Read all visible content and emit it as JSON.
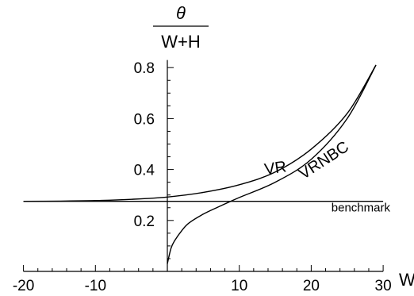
{
  "chart_data": {
    "type": "line",
    "title": "",
    "xlabel": "W",
    "ylabel": {
      "numerator": "θ",
      "denominator": "W+H"
    },
    "xlim": [
      -20,
      30
    ],
    "ylim": [
      0,
      0.83
    ],
    "x_ticks": [
      -20,
      -10,
      10,
      20,
      30
    ],
    "x_tick_labels": [
      "-20",
      "-10",
      "10",
      "20",
      "30"
    ],
    "y_ticks": [
      0.2,
      0.4,
      0.6,
      0.8
    ],
    "y_tick_labels": [
      "0.2",
      "0.4",
      "0.6",
      "0.8"
    ],
    "grid": false,
    "series": [
      {
        "name": "VR",
        "x": [
          -20,
          -15,
          -10,
          -5,
          0,
          5,
          10,
          15,
          20,
          25,
          29
        ],
        "y": [
          0.275,
          0.276,
          0.278,
          0.283,
          0.292,
          0.31,
          0.34,
          0.39,
          0.48,
          0.62,
          0.81
        ]
      },
      {
        "name": "VRNBC",
        "x": [
          0,
          0.5,
          1,
          2,
          3,
          5,
          7,
          10,
          15,
          20,
          25,
          29
        ],
        "y": [
          0.03,
          0.09,
          0.12,
          0.16,
          0.19,
          0.225,
          0.252,
          0.29,
          0.35,
          0.44,
          0.6,
          0.81
        ]
      },
      {
        "name": "benchmark",
        "x": [
          -20,
          30
        ],
        "y": [
          0.275,
          0.275
        ]
      }
    ],
    "annotations": [
      {
        "text": "VR",
        "x": 13.6,
        "y": 0.38,
        "rotate": -8
      },
      {
        "text": "VRNBC",
        "x": 18.9,
        "y": 0.36,
        "rotate": -33
      },
      {
        "text": "benchmark",
        "x": 22.8,
        "y": 0.235,
        "rotate": 0
      }
    ]
  }
}
